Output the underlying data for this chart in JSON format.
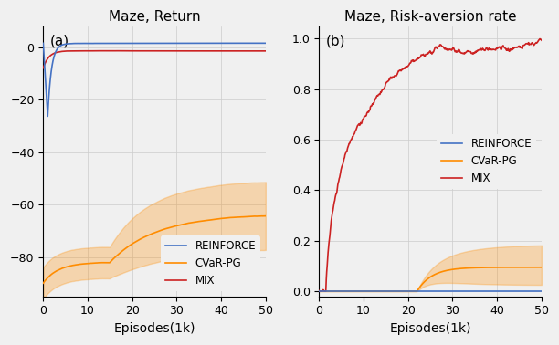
{
  "title_left": "Maze, Return",
  "title_right": "Maze, Risk-aversion rate",
  "xlabel": "Episodes(1k)",
  "label_a": "(a)",
  "label_b": "(b)",
  "legend_labels": [
    "REINFORCE",
    "CVaR-PG",
    "MIX"
  ],
  "colors": {
    "reinforce": "#4472C4",
    "cvar": "#FF8C00",
    "mix": "#CC2222"
  },
  "xlim": [
    0,
    50
  ],
  "ylim_left": [
    -95,
    8
  ],
  "ylim_right": [
    -0.02,
    1.05
  ],
  "yticks_left": [
    0,
    -20,
    -40,
    -60,
    -80
  ],
  "yticks_right": [
    0.0,
    0.2,
    0.4,
    0.6,
    0.8,
    1.0
  ],
  "xticks": [
    0,
    10,
    20,
    30,
    40,
    50
  ],
  "n_points": 500,
  "figsize": [
    6.12,
    3.78
  ],
  "dpi": 100,
  "bg_color": "#f0f0f0"
}
